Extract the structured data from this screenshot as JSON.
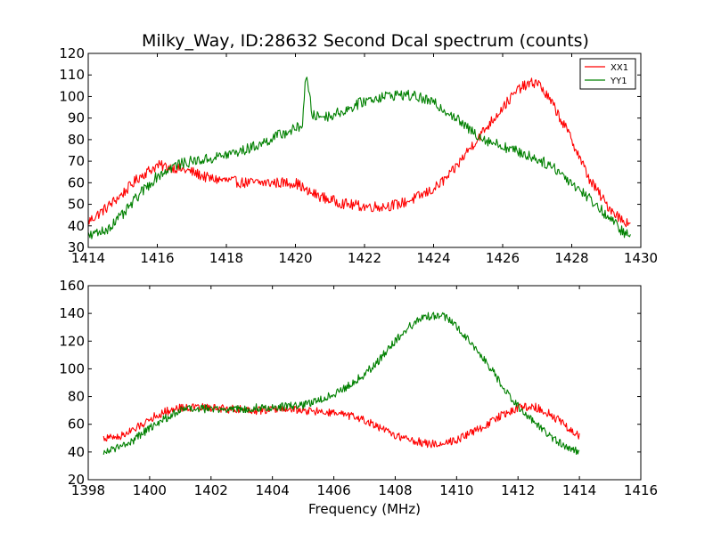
{
  "figure": {
    "title": "Milky_Way, ID:28632 Second Dcal spectrum (counts)"
  },
  "chart_data": [
    {
      "type": "line",
      "title": "Milky_Way, ID:28632 Second Dcal spectrum (counts)",
      "xlabel": "",
      "ylabel": "",
      "xlim": [
        1414,
        1430
      ],
      "ylim": [
        30,
        120
      ],
      "xticks": [
        "1414",
        "1416",
        "1418",
        "1420",
        "1422",
        "1424",
        "1426",
        "1428",
        "1430"
      ],
      "yticks": [
        "30",
        "40",
        "50",
        "60",
        "70",
        "80",
        "90",
        "100",
        "110",
        "120"
      ],
      "grid": false,
      "legend": "top-right",
      "colors": {
        "XX1": "#ff0000",
        "YY1": "#008000"
      },
      "x": [
        1414.0,
        1414.5,
        1415.0,
        1415.5,
        1416.0,
        1416.5,
        1417.0,
        1417.5,
        1418.0,
        1418.5,
        1419.0,
        1419.5,
        1420.0,
        1420.2,
        1420.3,
        1420.5,
        1421.0,
        1421.5,
        1422.0,
        1422.5,
        1423.0,
        1423.5,
        1424.0,
        1424.5,
        1425.0,
        1425.5,
        1426.0,
        1426.5,
        1427.0,
        1427.5,
        1428.0,
        1428.5,
        1429.0,
        1429.5,
        1429.7
      ],
      "series": [
        {
          "name": "XX1",
          "values": [
            42,
            48,
            55,
            63,
            68,
            67,
            65,
            62,
            61,
            60,
            60,
            60,
            60,
            58,
            56,
            55,
            52,
            50,
            49,
            49,
            50,
            53,
            57,
            64,
            75,
            85,
            95,
            104,
            107,
            95,
            80,
            62,
            50,
            42,
            42
          ]
        },
        {
          "name": "YY1",
          "values": [
            35,
            38,
            45,
            55,
            63,
            68,
            70,
            71,
            73,
            75,
            78,
            82,
            85,
            87,
            110,
            91,
            91,
            94,
            98,
            100,
            101,
            100,
            97,
            92,
            85,
            80,
            77,
            74,
            71,
            67,
            60,
            53,
            45,
            37,
            35
          ]
        }
      ]
    },
    {
      "type": "line",
      "title": "",
      "xlabel": "Frequency (MHz)",
      "ylabel": "",
      "xlim": [
        1398,
        1416
      ],
      "ylim": [
        20,
        160
      ],
      "xticks": [
        "1398",
        "1400",
        "1402",
        "1404",
        "1406",
        "1408",
        "1410",
        "1412",
        "1414",
        "1416"
      ],
      "yticks": [
        "20",
        "40",
        "60",
        "80",
        "100",
        "120",
        "140",
        "160"
      ],
      "grid": false,
      "legend": "none",
      "colors": {
        "XX1": "#ff0000",
        "YY1": "#008000"
      },
      "x": [
        1398.5,
        1399.0,
        1399.5,
        1400.0,
        1400.5,
        1401.0,
        1401.5,
        1402.0,
        1402.5,
        1403.0,
        1403.5,
        1404.0,
        1404.5,
        1405.0,
        1405.5,
        1406.0,
        1406.5,
        1407.0,
        1407.5,
        1408.0,
        1408.5,
        1409.0,
        1409.5,
        1410.0,
        1410.5,
        1411.0,
        1411.5,
        1412.0,
        1412.5,
        1413.0,
        1413.5,
        1414.0
      ],
      "series": [
        {
          "name": "XX1",
          "values": [
            50,
            51,
            56,
            64,
            69,
            72,
            72,
            72,
            71,
            71,
            70,
            71,
            71,
            70,
            69,
            68,
            66,
            63,
            57,
            52,
            49,
            46,
            46,
            49,
            54,
            60,
            67,
            72,
            73,
            68,
            60,
            51
          ]
        },
        {
          "name": "YY1",
          "values": [
            40,
            43,
            49,
            57,
            64,
            70,
            71,
            71,
            71,
            71,
            72,
            72,
            73,
            74,
            77,
            82,
            88,
            96,
            107,
            120,
            131,
            138,
            139,
            131,
            118,
            104,
            87,
            73,
            62,
            52,
            45,
            40
          ]
        }
      ]
    }
  ]
}
